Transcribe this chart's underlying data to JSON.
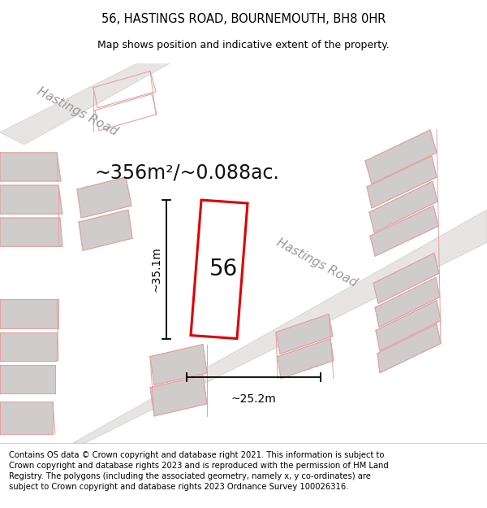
{
  "title_line1": "56, HASTINGS ROAD, BOURNEMOUTH, BH8 0HR",
  "title_line2": "Map shows position and indicative extent of the property.",
  "area_text": "~356m²/~0.088ac.",
  "number_label": "56",
  "dim_height": "~35.1m",
  "dim_width": "~25.2m",
  "footer_text": "Contains OS data © Crown copyright and database right 2021. This information is subject to Crown copyright and database rights 2023 and is reproduced with the permission of HM Land Registry. The polygons (including the associated geometry, namely x, y co-ordinates) are subject to Crown copyright and database rights 2023 Ordnance Survey 100026316.",
  "map_bg": "#f7f4f4",
  "road_fill": "#e8e4e4",
  "plot_fill": "#ffffff",
  "plot_stroke": "#dd0000",
  "pink_stroke": "#e8a0a0",
  "gray_block": "#d0cccc",
  "road_label_color": "#999999",
  "title_fontsize": 10.5,
  "subtitle_fontsize": 9,
  "area_fontsize": 17,
  "number_fontsize": 20,
  "road_label_fontsize": 11,
  "footer_fontsize": 7.2,
  "dim_fontsize": 10
}
